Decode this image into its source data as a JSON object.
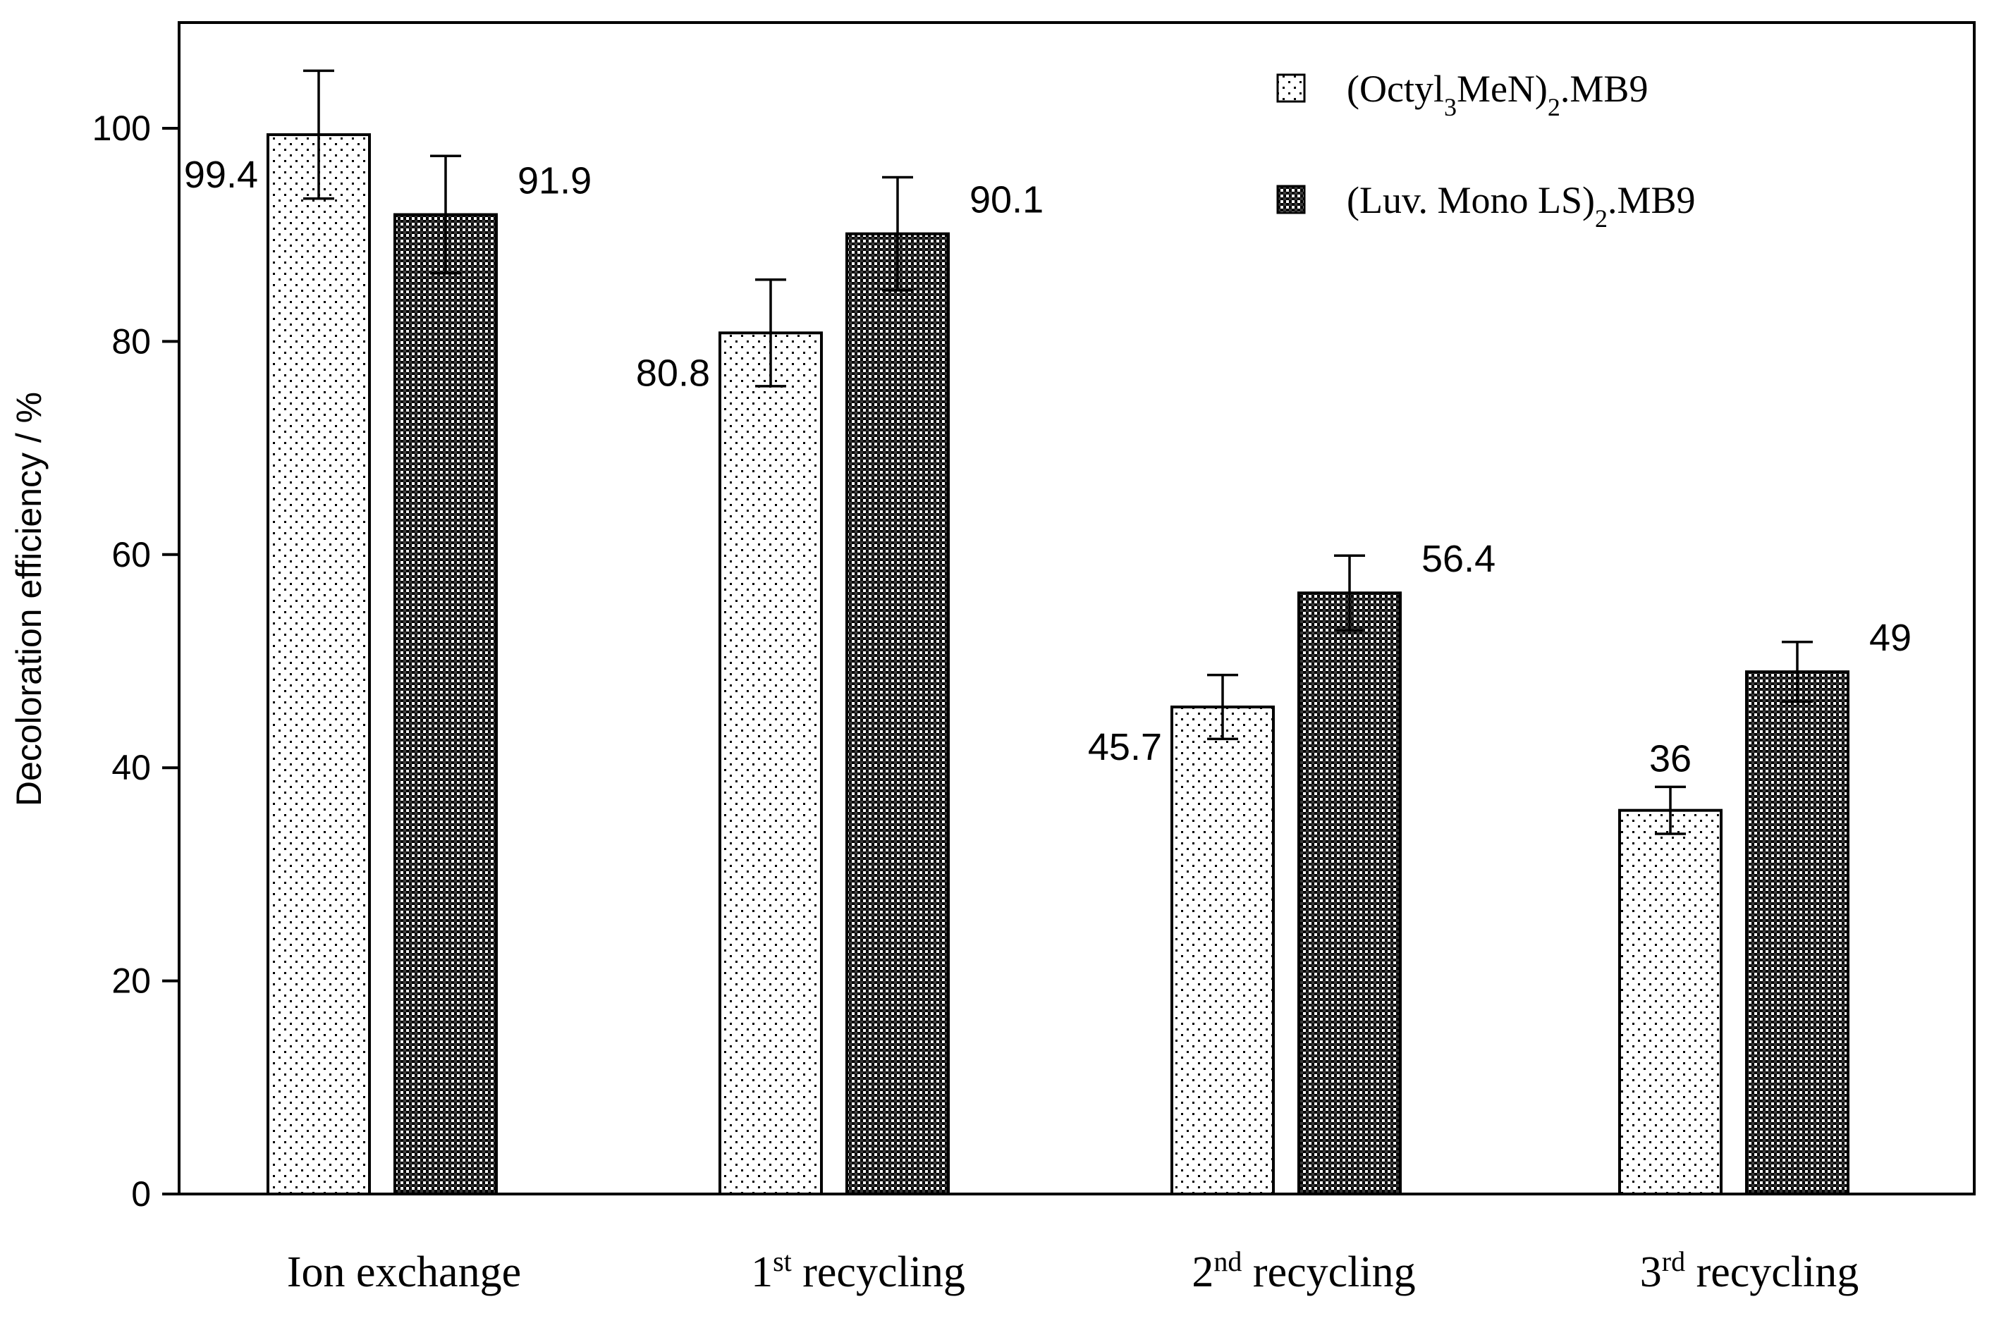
{
  "chart_data": {
    "type": "bar",
    "title": "",
    "ylabel": "Decoloration efficiency / %",
    "xlabel": "",
    "ylim": [
      0,
      110
    ],
    "yticks": [
      0,
      20,
      40,
      60,
      80,
      100
    ],
    "grid": false,
    "legend_position": "top-right",
    "categories": [
      {
        "prefix": "Ion exchange",
        "sup": "",
        "suffix": ""
      },
      {
        "prefix": "1",
        "sup": "st",
        "suffix": " recycling"
      },
      {
        "prefix": "2",
        "sup": "nd",
        "suffix": " recycling"
      },
      {
        "prefix": "3",
        "sup": "rd",
        "suffix": " recycling"
      }
    ],
    "series": [
      {
        "name": "(Octyl3MeN)2.MB9",
        "legend_parts": [
          {
            "t": "(Octyl",
            "sub": false
          },
          {
            "t": "3",
            "sub": true
          },
          {
            "t": "MeN)",
            "sub": false
          },
          {
            "t": "2",
            "sub": true
          },
          {
            "t": ".MB9",
            "sub": false
          }
        ],
        "pattern": "light-dots",
        "values": [
          99.4,
          80.8,
          45.7,
          36
        ],
        "errors": [
          6,
          5,
          3,
          2.2
        ],
        "labels": [
          "99.4",
          "80.8",
          "45.7",
          "36"
        ],
        "label_positions": [
          "left",
          "left",
          "left",
          "top"
        ]
      },
      {
        "name": "(Luv. Mono LS)2.MB9",
        "legend_parts": [
          {
            "t": "(Luv. Mono LS)",
            "sub": false
          },
          {
            "t": "2",
            "sub": true
          },
          {
            "t": ".MB9",
            "sub": false
          }
        ],
        "pattern": "dark-checker",
        "values": [
          91.9,
          90.1,
          56.4,
          49
        ],
        "errors": [
          5.5,
          5.3,
          3.5,
          2.8
        ],
        "labels": [
          "91.9",
          "90.1",
          "56.4",
          "49"
        ],
        "label_positions": [
          "right",
          "right",
          "right",
          "right"
        ]
      }
    ]
  }
}
